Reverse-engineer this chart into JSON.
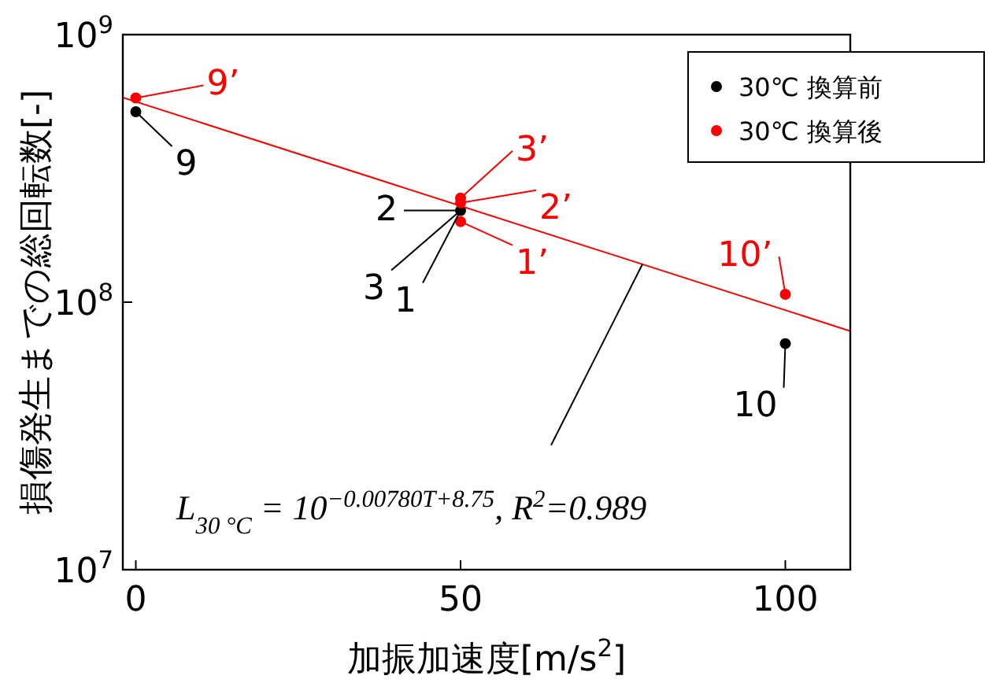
{
  "chart_data": {
    "type": "scatter",
    "xlabel": "加振加速度[m/s$^{2}$]",
    "ylabel": "損傷発生までの総回転数[-]",
    "xlim": [
      -2,
      110
    ],
    "xticks": [
      0,
      50,
      100
    ],
    "log": "y",
    "ylim": [
      10000000,
      1000000000
    ],
    "yticks": [
      {
        "value": 10000000,
        "label": "10$^{7}$"
      },
      {
        "value": 100000000,
        "label": "10$^{8}$"
      },
      {
        "value": 1000000000,
        "label": "10$^{9}$"
      }
    ],
    "grid": false,
    "legend": "top right",
    "marker": "circle",
    "series": [
      {
        "name": "30℃ 換算前",
        "color": "#000000",
        "x": [
          0,
          50,
          100
        ],
        "values": [
          515000000,
          220000000,
          70000000
        ]
      },
      {
        "name": "30℃ 換算後",
        "color": "#ff0000",
        "x": [
          0,
          50,
          50,
          50,
          100
        ],
        "values": [
          580000000,
          200000000,
          235000000,
          245000000,
          107000000
        ]
      },
      {
        "type": "line",
        "marker": "none",
        "color": "#ff0000",
        "x": [
          -2,
          110
        ],
        "values": [
          582000000,
          78000000
        ]
      }
    ],
    "annotations": [
      {
        "text": "9",
        "x": 0,
        "y": 515000000
      },
      {
        "text": "2",
        "x": 50,
        "y": 220000000
      },
      {
        "text": "3",
        "x": 50,
        "y": 220000000
      },
      {
        "text": "1",
        "x": 50,
        "y": 220000000
      },
      {
        "text": "10",
        "x": 100,
        "y": 70000000
      },
      {
        "text": "9’",
        "x": 0,
        "y": 580000000
      },
      {
        "text": "3’",
        "x": 50,
        "y": 245000000
      },
      {
        "text": "2’",
        "x": 50,
        "y": 235000000
      },
      {
        "text": "1’",
        "x": 50,
        "y": 200000000
      },
      {
        "text": "10’",
        "x": 100,
        "y": 107000000
      },
      {
        "text": "L$_{30 °C}$ = 10$^{−0.00780T+8.75}$,  R$^{2}$=0.989",
        "x": 78,
        "y": 138600000
      }
    ]
  }
}
